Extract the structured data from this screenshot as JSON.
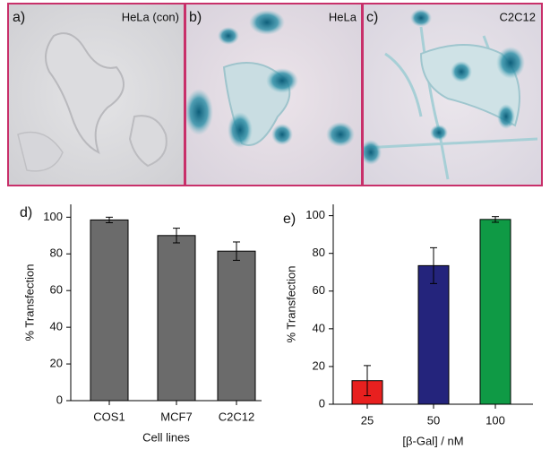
{
  "panels": [
    {
      "label": "a)",
      "caption": "HeLa (con)"
    },
    {
      "label": "b)",
      "caption": "HeLa"
    },
    {
      "label": "c)",
      "caption": "C2C12"
    }
  ],
  "chart_data": [
    {
      "type": "bar",
      "panel_label": "d)",
      "x_label": "Cell lines",
      "y_label": "% Transfection",
      "categories": [
        "COS1",
        "MCF7",
        "C2C12"
      ],
      "values": [
        98.5,
        90,
        81.5
      ],
      "errors": [
        1.5,
        4,
        5
      ],
      "color": "#6b6b6b",
      "ylim": [
        0,
        107
      ],
      "yticks": [
        0,
        20,
        40,
        60,
        80,
        100
      ]
    },
    {
      "type": "bar",
      "panel_label": "e)",
      "x_label": "[β-Gal] / nM",
      "y_label": "% Transfection",
      "categories": [
        "25",
        "50",
        "100"
      ],
      "values": [
        12.5,
        73.5,
        98
      ],
      "errors": [
        8,
        9.5,
        1.5
      ],
      "colors": [
        "#e8201f",
        "#24247c",
        "#0f9a45"
      ],
      "ylim": [
        0,
        106
      ],
      "yticks": [
        0,
        20,
        40,
        60,
        80,
        100
      ]
    }
  ]
}
